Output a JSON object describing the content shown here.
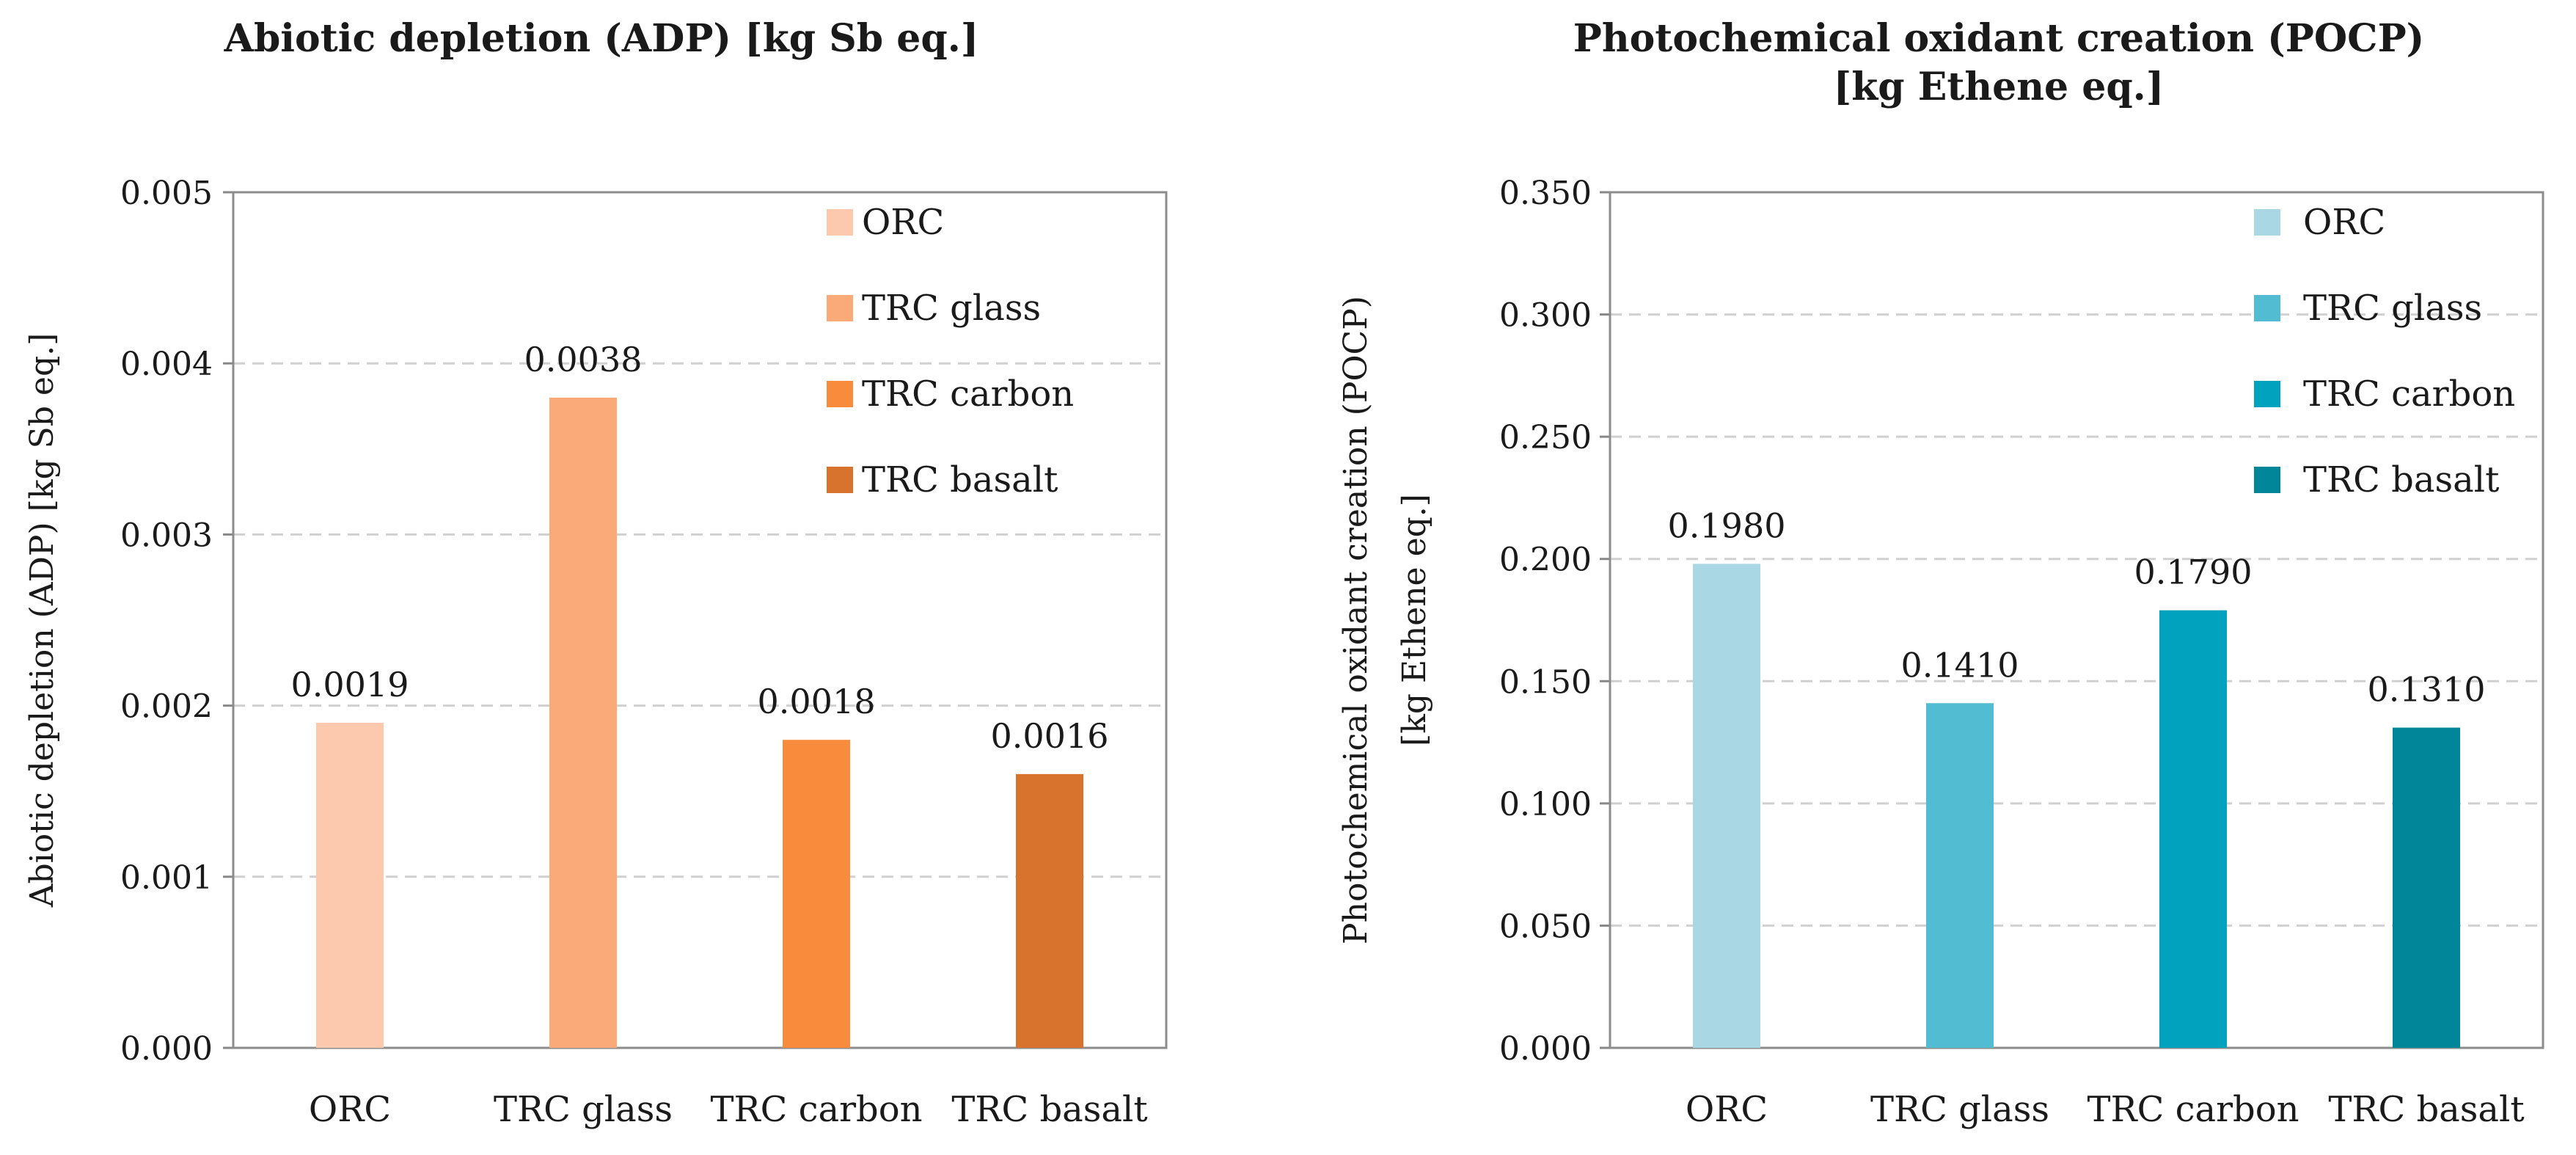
{
  "chart_data": [
    {
      "type": "bar",
      "title": "Abiotic depletion  (ADP) [kg Sb eq.]",
      "ylabel_lines": [
        "Abiotic depletion (ADP) [kg Sb eq.]"
      ],
      "xlabel": "",
      "categories": [
        "ORC",
        "TRC glass",
        "TRC carbon",
        "TRC basalt"
      ],
      "values": [
        0.0019,
        0.0038,
        0.0018,
        0.0016
      ],
      "value_labels": [
        "0.0019",
        "0.0038",
        "0.0018",
        "0.0016"
      ],
      "colors": [
        "#fcc8ae",
        "#faaa78",
        "#f98b3c",
        "#d8732d"
      ],
      "legend": [
        "ORC",
        "TRC glass",
        "TRC carbon",
        "TRC basalt"
      ],
      "legend_position": "top-right",
      "ylim": [
        0,
        0.005
      ],
      "yticks": [
        "0.000",
        "0.001",
        "0.002",
        "0.003",
        "0.004",
        "0.005"
      ],
      "grid": "dashed horizontal"
    },
    {
      "type": "bar",
      "title": "Photochemical oxidant creation (POCP)",
      "title_line2": "[kg Ethene eq.]",
      "ylabel_lines": [
        "Photochemical oxidant creation (POCP)",
        "[kg Ethene eq.]"
      ],
      "xlabel": "",
      "categories": [
        "ORC",
        "TRC glass",
        "TRC carbon",
        "TRC basalt"
      ],
      "values": [
        0.198,
        0.141,
        0.179,
        0.131
      ],
      "value_labels": [
        "0.1980",
        "0.1410",
        "0.1790",
        "0.1310"
      ],
      "colors": [
        "#a9d7e3",
        "#52bcd3",
        "#00a2bd",
        "#008599"
      ],
      "legend": [
        "ORC",
        "TRC glass",
        "TRC carbon",
        "TRC basalt"
      ],
      "legend_position": "top-right",
      "ylim": [
        0,
        0.35
      ],
      "yticks": [
        "0.000",
        "0.050",
        "0.100",
        "0.150",
        "0.200",
        "0.250",
        "0.300",
        "0.350"
      ],
      "grid": "dashed horizontal"
    }
  ]
}
